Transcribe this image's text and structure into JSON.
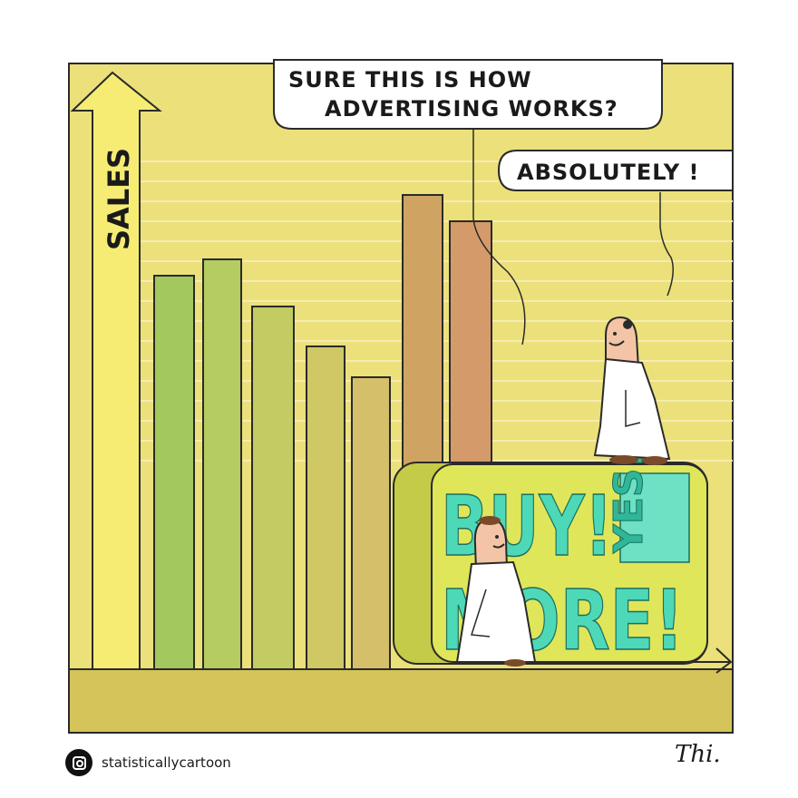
{
  "speech": {
    "question_line1": "SURE THIS IS HOW",
    "question_line2": "ADVERTISING WORKS?",
    "answer": "ABSOLUTELY !"
  },
  "axis": {
    "y_label": "SALES"
  },
  "box": {
    "buy": "BUY!",
    "yes": "YES!",
    "more": "MORE!"
  },
  "signature": "Thi.",
  "footer": {
    "handle": "statisticallycartoon",
    "icon": "instagram-icon"
  },
  "colors": {
    "background": "#ece07a",
    "floor": "#d4c45a",
    "sales_arrow": "#f6ec74",
    "box": "#dfe65a",
    "box_text": "#4dd9b8",
    "box_text_dark": "#2fb79a"
  }
}
